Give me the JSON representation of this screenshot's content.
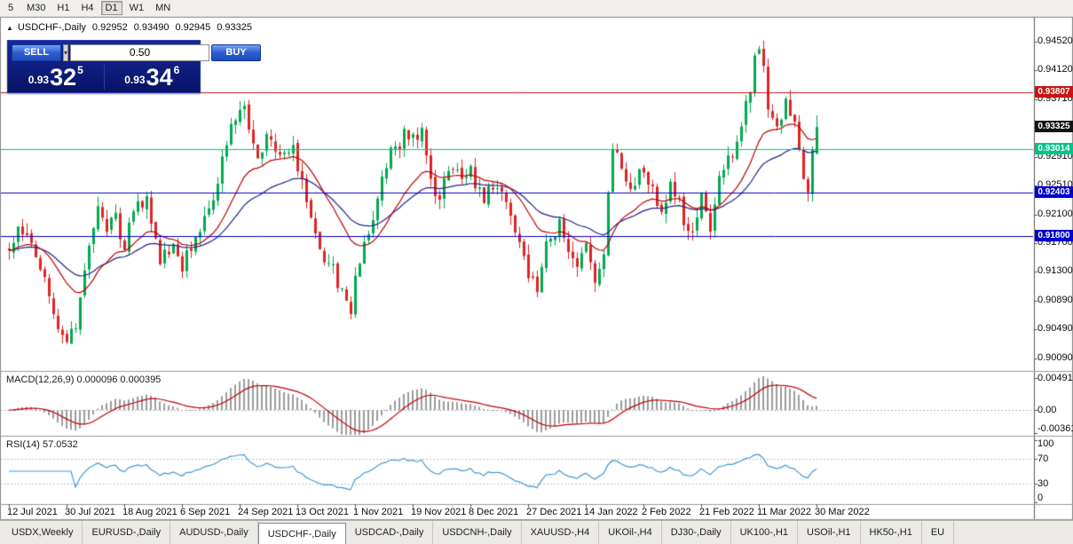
{
  "toolbar": {
    "timeframes": [
      {
        "label": "5",
        "active": false
      },
      {
        "label": "M30",
        "active": false
      },
      {
        "label": "H1",
        "active": false
      },
      {
        "label": "H4",
        "active": false
      },
      {
        "label": "D1",
        "active": true
      },
      {
        "label": "W1",
        "active": false
      },
      {
        "label": "MN",
        "active": false
      }
    ]
  },
  "chart_header": {
    "title": "USDCHF-,Daily",
    "open": "0.92952",
    "high": "0.93490",
    "low": "0.92945",
    "close": "0.93325"
  },
  "trade_panel": {
    "sell_label": "SELL",
    "buy_label": "BUY",
    "volume": "0.50",
    "sell_price": {
      "prefix": "0.93",
      "big": "32",
      "sup": "5"
    },
    "buy_price": {
      "prefix": "0.93",
      "big": "34",
      "sup": "6"
    }
  },
  "indicator_labels": {
    "macd_name": "MACD(12,26,9)",
    "macd_values": "0.000096 0.000395",
    "rsi_name": "RSI(14)",
    "rsi_value": "57.0532"
  },
  "tabs": [
    {
      "label": "USDX,Weekly",
      "active": false
    },
    {
      "label": "EURUSD-,Daily",
      "active": false
    },
    {
      "label": "AUDUSD-,Daily",
      "active": false
    },
    {
      "label": "USDCHF-,Daily",
      "active": true
    },
    {
      "label": "USDCAD-,Daily",
      "active": false
    },
    {
      "label": "USDCNH-,Daily",
      "active": false
    },
    {
      "label": "XAUUSD-,H4",
      "active": false
    },
    {
      "label": "UKOil-,H4",
      "active": false
    },
    {
      "label": "DJ30-,Daily",
      "active": false
    },
    {
      "label": "UK100-,H1",
      "active": false
    },
    {
      "label": "USOil-,H1",
      "active": false
    },
    {
      "label": "HK50-,H1",
      "active": false
    },
    {
      "label": "EU",
      "active": false
    }
  ],
  "chart_data": {
    "type": "candlestick",
    "symbol": "USDCHF-",
    "timeframe": "Daily",
    "current_ohlc": {
      "open": 0.92952,
      "high": 0.9349,
      "low": 0.92945,
      "close": 0.93325
    },
    "y_ticks": [
      "0.94520",
      "0.94120",
      "0.93710",
      "0.92910",
      "0.92510",
      "0.92100",
      "0.91700",
      "0.91300",
      "0.90890",
      "0.90490",
      "0.90090"
    ],
    "x_ticks": [
      "12 Jul 2021",
      "30 Jul 2021",
      "18 Aug 2021",
      "6 Sep 2021",
      "24 Sep 2021",
      "13 Oct 2021",
      "1 Nov 2021",
      "19 Nov 2021",
      "8 Dec 2021",
      "27 Dec 2021",
      "14 Jan 2022",
      "2 Feb 2022",
      "21 Feb 2022",
      "11 Mar 2022",
      "30 Mar 2022"
    ],
    "levels": [
      {
        "price": 0.93807,
        "label": "0.93807",
        "color": "#c81414",
        "name": "resistance-line"
      },
      {
        "price": 0.93014,
        "label": "0.93014",
        "color": "#00c389",
        "name": "support-line-teal"
      },
      {
        "price": 0.92403,
        "label": "0.92403",
        "color": "#0000cc",
        "name": "support-line-blue-1"
      },
      {
        "price": 0.918,
        "label": "0.91800",
        "color": "#0000cc",
        "name": "support-line-blue-2"
      }
    ],
    "current_price_tag": {
      "price": 0.93325,
      "label": "0.93325",
      "color": "#141414"
    },
    "candle_count": 183,
    "ticks_per_label": 13,
    "price_path": [
      [
        0,
        0.9165
      ],
      [
        2,
        0.9192
      ],
      [
        5,
        0.9175
      ],
      [
        8,
        0.912
      ],
      [
        11,
        0.9058
      ],
      [
        13,
        0.9042
      ],
      [
        15,
        0.9062
      ],
      [
        17,
        0.913
      ],
      [
        20,
        0.9232
      ],
      [
        22,
        0.918
      ],
      [
        24,
        0.9212
      ],
      [
        26,
        0.916
      ],
      [
        28,
        0.9222
      ],
      [
        31,
        0.9232
      ],
      [
        34,
        0.915
      ],
      [
        37,
        0.9172
      ],
      [
        39,
        0.914
      ],
      [
        42,
        0.918
      ],
      [
        45,
        0.9222
      ],
      [
        47,
        0.9262
      ],
      [
        50,
        0.933
      ],
      [
        52,
        0.9362
      ],
      [
        54,
        0.934
      ],
      [
        56,
        0.9292
      ],
      [
        58,
        0.9322
      ],
      [
        61,
        0.929
      ],
      [
        64,
        0.9302
      ],
      [
        66,
        0.9252
      ],
      [
        68,
        0.92
      ],
      [
        70,
        0.9162
      ],
      [
        73,
        0.913
      ],
      [
        75,
        0.9098
      ],
      [
        77,
        0.9062
      ],
      [
        78,
        0.912
      ],
      [
        80,
        0.9162
      ],
      [
        83,
        0.9232
      ],
      [
        86,
        0.9292
      ],
      [
        89,
        0.9322
      ],
      [
        91,
        0.9312
      ],
      [
        93,
        0.934
      ],
      [
        95,
        0.9262
      ],
      [
        97,
        0.9232
      ],
      [
        99,
        0.9282
      ],
      [
        102,
        0.9262
      ],
      [
        104,
        0.9272
      ],
      [
        107,
        0.9232
      ],
      [
        110,
        0.9252
      ],
      [
        113,
        0.92
      ],
      [
        115,
        0.9172
      ],
      [
        117,
        0.9132
      ],
      [
        119,
        0.91
      ],
      [
        121,
        0.9162
      ],
      [
        124,
        0.92
      ],
      [
        126,
        0.9152
      ],
      [
        128,
        0.9132
      ],
      [
        130,
        0.9162
      ],
      [
        132,
        0.9112
      ],
      [
        134,
        0.9162
      ],
      [
        136,
        0.9312
      ],
      [
        138,
        0.9282
      ],
      [
        140,
        0.9252
      ],
      [
        143,
        0.9272
      ],
      [
        145,
        0.9242
      ],
      [
        147,
        0.9222
      ],
      [
        149,
        0.9252
      ],
      [
        151,
        0.9232
      ],
      [
        153,
        0.9182
      ],
      [
        155,
        0.9212
      ],
      [
        156,
        0.9232
      ],
      [
        158,
        0.9182
      ],
      [
        160,
        0.9262
      ],
      [
        162,
        0.9282
      ],
      [
        164,
        0.9322
      ],
      [
        166,
        0.9362
      ],
      [
        168,
        0.9422
      ],
      [
        169,
        0.9452
      ],
      [
        171,
        0.9362
      ],
      [
        173,
        0.9342
      ],
      [
        175,
        0.9362
      ],
      [
        177,
        0.9332
      ],
      [
        179,
        0.9262
      ],
      [
        180,
        0.9248
      ],
      [
        181,
        0.929
      ],
      [
        182,
        0.93325
      ]
    ],
    "indicators": [
      {
        "name": "MACD",
        "params": "12,26,9",
        "current_values": [
          9.6e-05,
          0.000395
        ],
        "axis": [
          "0.004913",
          "0.00",
          "-0.003614"
        ]
      },
      {
        "name": "RSI",
        "params": "14",
        "current_value": 57.0532,
        "axis": [
          "100",
          "70",
          "30",
          "0"
        ]
      }
    ],
    "colors": {
      "up": "#00a94f",
      "down": "#df2323",
      "ma_fast": "#c00000",
      "ma_slow": "#22228e",
      "macd_hist": "#9c9c9c",
      "macd_signal": "#c00000",
      "rsi": "#3e9bd8"
    }
  }
}
